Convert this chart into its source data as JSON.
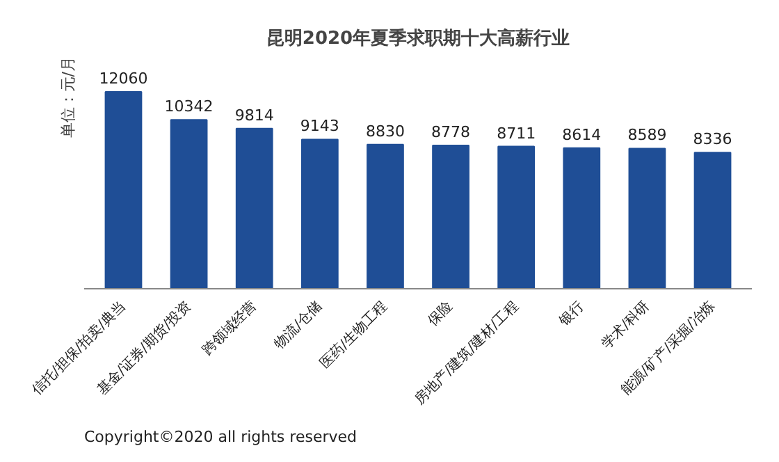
{
  "chart_data": {
    "type": "bar",
    "title": "昆明2020年夏季求职期十大高薪行业",
    "ylabel": "单位：元/月",
    "categories": [
      "信托/担保/拍卖/典当",
      "基金/证券/期货/投资",
      "跨领域经营",
      "物流/仓储",
      "医药/生物工程",
      "保险",
      "房地产/建筑/建材/工程",
      "银行",
      "学术/科研",
      "能源/矿产/采掘/冶炼"
    ],
    "values": [
      12060,
      10342,
      9814,
      9143,
      8830,
      8778,
      8711,
      8614,
      8589,
      8336
    ],
    "color": "#1f4e96",
    "data_labels": true,
    "grid": false,
    "tick_labels": "x",
    "annotations": [
      "Copyright©2020 all rights reserved"
    ]
  }
}
